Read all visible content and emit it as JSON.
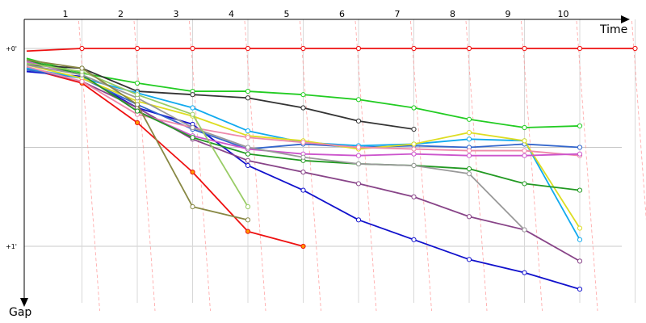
{
  "chart_data": {
    "type": "line",
    "xlabel": "Time",
    "ylabel": "Gap",
    "lap_labels": [
      "1",
      "2",
      "3",
      "4",
      "5",
      "6",
      "7",
      "8",
      "9",
      "10"
    ],
    "y_ticks": [
      {
        "label": "+0'",
        "value": 0
      },
      {
        "label": "+1'",
        "value": 60
      }
    ],
    "ylim": [
      0,
      70
    ],
    "grid": true,
    "series": [
      {
        "color": "#ee1111",
        "marker": "#ffffff",
        "points": [
          [
            0,
            0.8
          ],
          [
            1,
            0.0
          ],
          [
            2,
            0.0
          ],
          [
            3,
            0.0
          ],
          [
            4,
            0.0
          ],
          [
            5,
            0.0
          ],
          [
            6,
            0.0
          ],
          [
            7,
            0.0
          ],
          [
            8,
            0.0
          ],
          [
            9,
            0.0
          ],
          [
            10,
            0.0
          ],
          [
            11,
            0.0
          ]
        ]
      },
      {
        "color": "#ee1111",
        "marker": "#ff9900",
        "points": [
          [
            0,
            6
          ],
          [
            1,
            10.5
          ],
          [
            2,
            22.5
          ],
          [
            3,
            37.5
          ],
          [
            4,
            55.5
          ],
          [
            5,
            60
          ]
        ]
      },
      {
        "color": "#22cc22",
        "marker": "#ffffff",
        "points": [
          [
            0,
            3
          ],
          [
            1,
            7.5
          ],
          [
            2,
            10.5
          ],
          [
            3,
            13
          ],
          [
            4,
            13
          ],
          [
            5,
            14
          ],
          [
            6,
            15.5
          ],
          [
            7,
            18
          ],
          [
            8,
            21.5
          ],
          [
            9,
            24
          ],
          [
            10,
            23.5
          ]
        ]
      },
      {
        "color": "#333333",
        "marker": "#ffffff",
        "points": [
          [
            0,
            5
          ],
          [
            1,
            6
          ],
          [
            2,
            13
          ],
          [
            3,
            14
          ],
          [
            4,
            15
          ],
          [
            5,
            18
          ],
          [
            6,
            22
          ],
          [
            7,
            24.5
          ]
        ]
      },
      {
        "color": "#1111cc",
        "marker": "#ffffff",
        "points": [
          [
            0,
            7
          ],
          [
            1,
            8.5
          ],
          [
            2,
            18
          ],
          [
            3,
            23
          ],
          [
            4,
            35.5
          ],
          [
            5,
            43
          ],
          [
            6,
            52
          ],
          [
            7,
            58
          ],
          [
            8,
            64
          ],
          [
            9,
            68
          ],
          [
            10,
            73
          ]
        ]
      },
      {
        "color": "#884488",
        "marker": "#ffffff",
        "points": [
          [
            0,
            6
          ],
          [
            1,
            10
          ],
          [
            2,
            18
          ],
          [
            3,
            27.5
          ],
          [
            4,
            34
          ],
          [
            5,
            37.5
          ],
          [
            6,
            41
          ],
          [
            7,
            45
          ],
          [
            8,
            51
          ],
          [
            9,
            55
          ],
          [
            10,
            64.5
          ]
        ]
      },
      {
        "color": "#3366cc",
        "marker": "#ffffff",
        "points": [
          [
            0,
            6.5
          ],
          [
            1,
            9
          ],
          [
            2,
            17
          ],
          [
            3,
            24.5
          ],
          [
            4,
            30.5
          ],
          [
            5,
            29
          ],
          [
            6,
            30
          ],
          [
            7,
            29.5
          ],
          [
            8,
            30
          ],
          [
            9,
            29
          ],
          [
            10,
            30
          ]
        ]
      },
      {
        "color": "#11aaee",
        "marker": "#ffffff",
        "points": [
          [
            0,
            6
          ],
          [
            1,
            9
          ],
          [
            2,
            13.5
          ],
          [
            3,
            18
          ],
          [
            4,
            25
          ],
          [
            5,
            28.5
          ],
          [
            6,
            29.5
          ],
          [
            7,
            29
          ],
          [
            8,
            27.5
          ],
          [
            9,
            28
          ],
          [
            10,
            58
          ]
        ]
      },
      {
        "color": "#dddd22",
        "marker": "#ffffff",
        "points": [
          [
            0,
            5
          ],
          [
            1,
            9
          ],
          [
            2,
            16
          ],
          [
            3,
            20.5
          ],
          [
            4,
            26.5
          ],
          [
            5,
            28
          ],
          [
            6,
            30.5
          ],
          [
            7,
            29
          ],
          [
            8,
            25.5
          ],
          [
            9,
            28
          ],
          [
            10,
            54.5
          ]
        ]
      },
      {
        "color": "#ee88aa",
        "marker": "#ffffff",
        "points": [
          [
            0,
            5.5
          ],
          [
            1,
            10
          ],
          [
            2,
            20
          ],
          [
            3,
            24
          ],
          [
            4,
            27
          ],
          [
            5,
            28.5
          ],
          [
            6,
            30
          ],
          [
            7,
            30.5
          ],
          [
            8,
            31
          ],
          [
            9,
            31
          ],
          [
            10,
            32.5
          ]
        ]
      },
      {
        "color": "#cc55cc",
        "marker": "#ffffff",
        "points": [
          [
            0,
            4
          ],
          [
            1,
            8
          ],
          [
            2,
            19
          ],
          [
            3,
            26.5
          ],
          [
            4,
            30.5
          ],
          [
            5,
            32
          ],
          [
            6,
            32.5
          ],
          [
            7,
            32
          ],
          [
            8,
            32.5
          ],
          [
            9,
            32.5
          ],
          [
            10,
            32
          ]
        ]
      },
      {
        "color": "#229922",
        "marker": "#ffffff",
        "points": [
          [
            0,
            3.5
          ],
          [
            1,
            8
          ],
          [
            2,
            19
          ],
          [
            3,
            27
          ],
          [
            4,
            32
          ],
          [
            5,
            34
          ],
          [
            6,
            35
          ],
          [
            7,
            35.5
          ],
          [
            8,
            36.5
          ],
          [
            9,
            41
          ],
          [
            10,
            43
          ]
        ]
      },
      {
        "color": "#999999",
        "marker": "#ffffff",
        "points": [
          [
            0,
            5
          ],
          [
            1,
            8
          ],
          [
            2,
            15
          ],
          [
            3,
            24
          ],
          [
            4,
            30
          ],
          [
            5,
            33
          ],
          [
            6,
            35
          ],
          [
            7,
            35.5
          ],
          [
            8,
            38
          ],
          [
            9,
            55
          ]
        ]
      },
      {
        "color": "#99cc66",
        "marker": "#ffffff",
        "points": [
          [
            0,
            4.5
          ],
          [
            1,
            7
          ],
          [
            2,
            14
          ],
          [
            3,
            20
          ],
          [
            4,
            48
          ]
        ]
      },
      {
        "color": "#888844",
        "marker": "#ffffff",
        "points": [
          [
            0,
            3.5
          ],
          [
            1,
            6
          ],
          [
            2,
            17
          ],
          [
            3,
            48
          ],
          [
            4,
            52
          ]
        ]
      }
    ]
  }
}
